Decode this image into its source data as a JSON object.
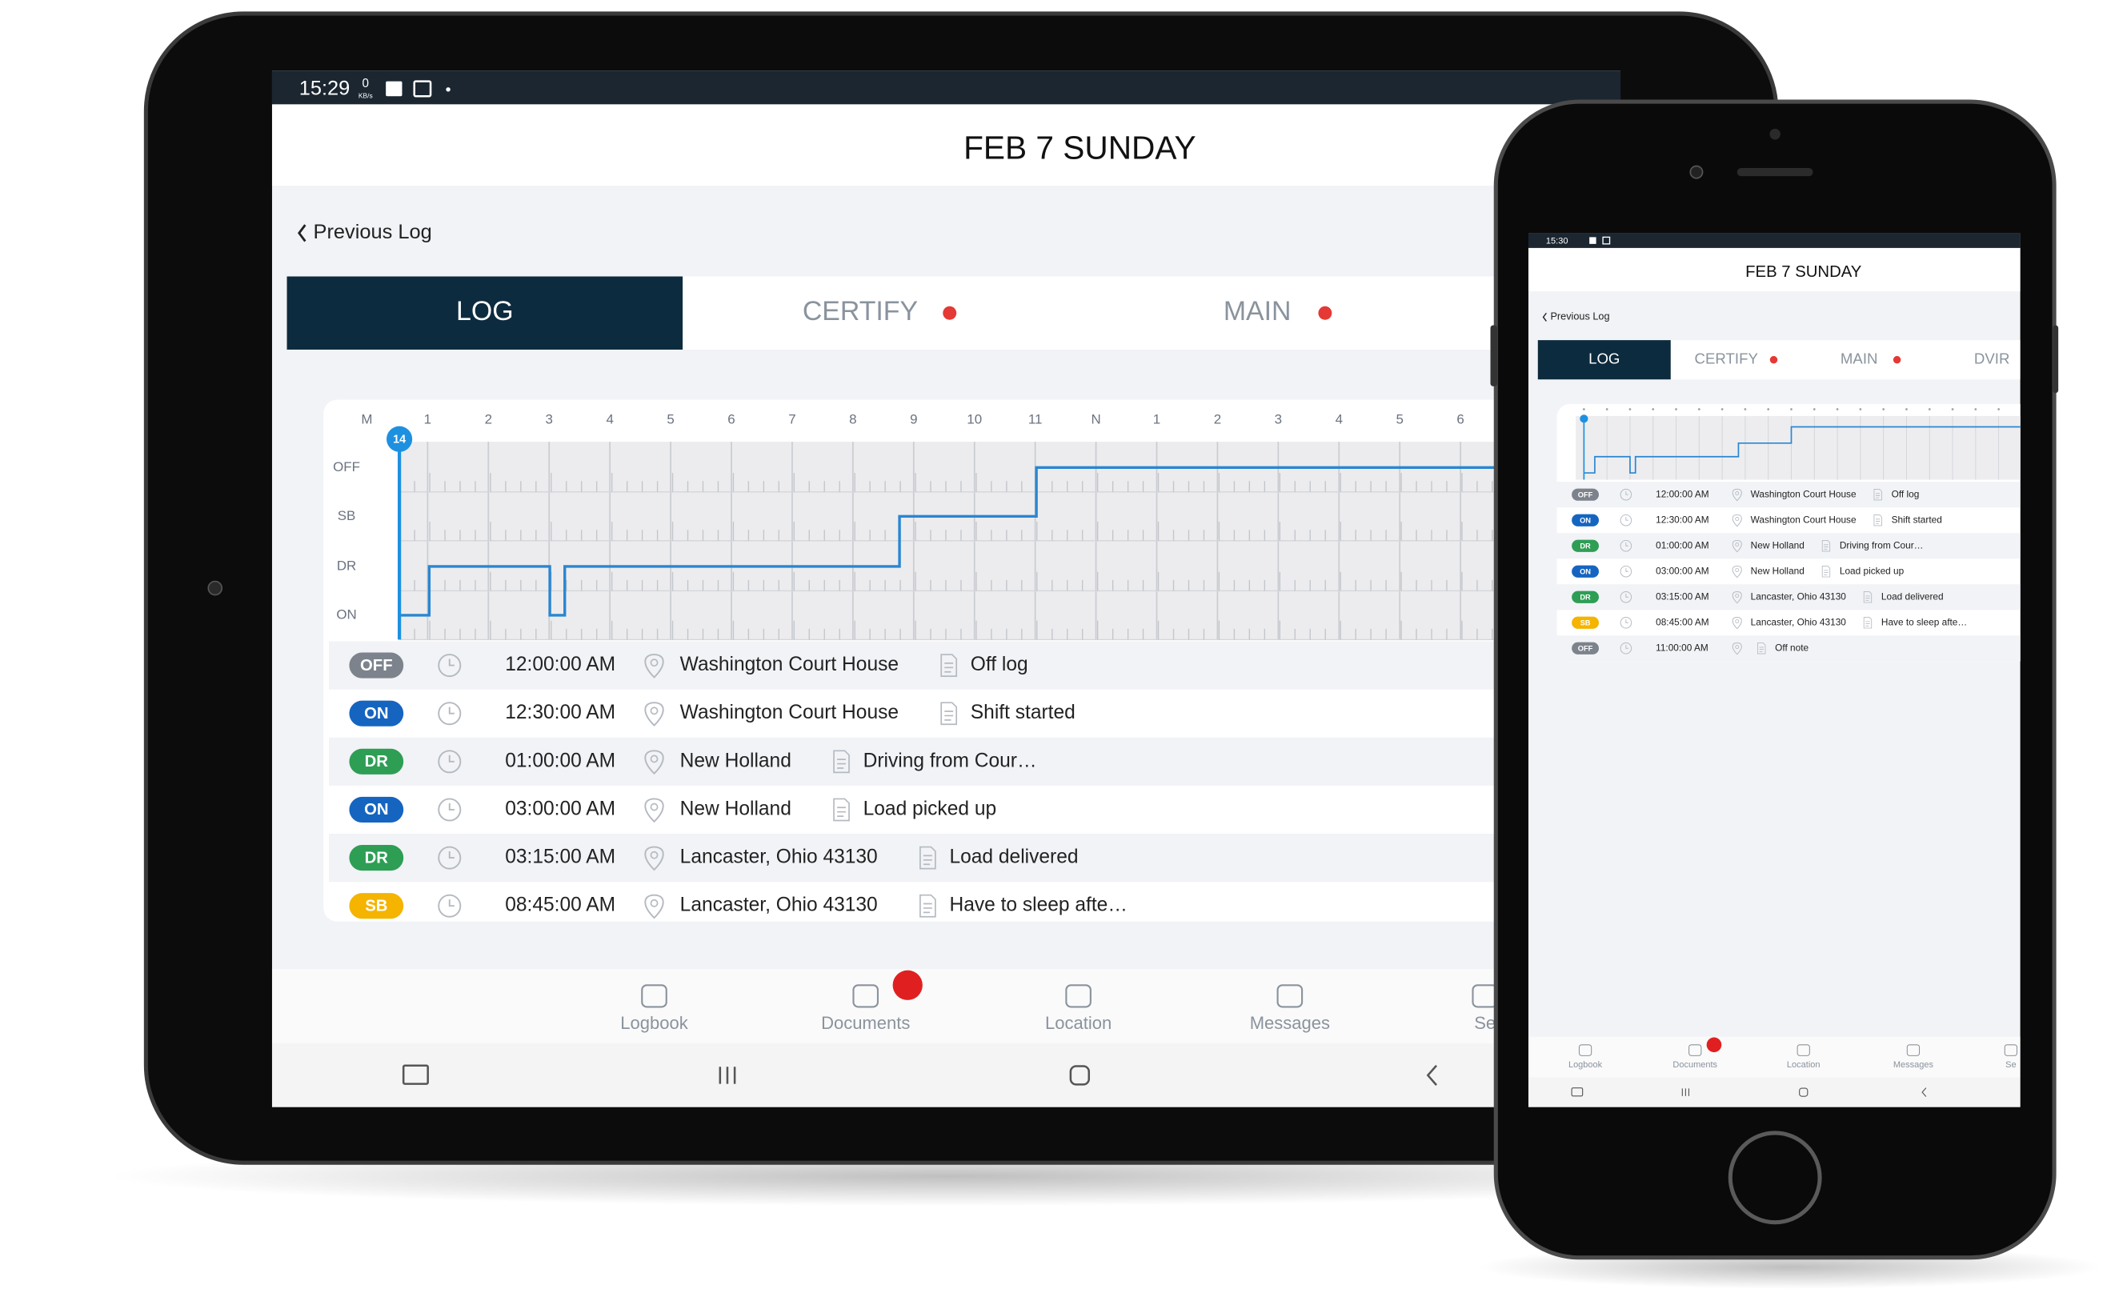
{
  "status_colors": {
    "OFF": "#7d838c",
    "ON": "#1565c0",
    "DR": "#2e9e55",
    "SB": "#f4b400"
  },
  "tablet": {
    "status_bar": {
      "time": "15:29",
      "speed": "0",
      "speed_unit": "KB/s"
    },
    "header": {
      "title": "FEB 7 SUNDAY"
    },
    "back_link": "Previous Log",
    "tabs": [
      "LOG",
      "CERTIFY",
      "MAIN"
    ],
    "graph": {
      "hours": [
        "M",
        "1",
        "2",
        "3",
        "4",
        "5",
        "6",
        "7",
        "8",
        "9",
        "10",
        "11",
        "N",
        "1",
        "2",
        "3",
        "4",
        "5",
        "6"
      ],
      "statuses": [
        "OFF",
        "SB",
        "DR",
        "ON"
      ],
      "marker": "14"
    },
    "events": [
      {
        "status": "OFF",
        "time": "12:00:00 AM",
        "location": "Washington Court House",
        "note": "Off log"
      },
      {
        "status": "ON",
        "time": "12:30:00 AM",
        "location": "Washington Court House",
        "note": "Shift started"
      },
      {
        "status": "DR",
        "time": "01:00:00 AM",
        "location": "New Holland",
        "note": "Driving from Cour…"
      },
      {
        "status": "ON",
        "time": "03:00:00 AM",
        "location": "New Holland",
        "note": "Load picked up"
      },
      {
        "status": "DR",
        "time": "03:15:00 AM",
        "location": "Lancaster, Ohio 43130",
        "note": "Load delivered"
      },
      {
        "status": "SB",
        "time": "08:45:00 AM",
        "location": "Lancaster, Ohio 43130",
        "note": "Have to sleep afte…"
      }
    ],
    "nav": [
      "Logbook",
      "Documents",
      "Location",
      "Messages",
      "Se"
    ]
  },
  "phone": {
    "status_bar": {
      "time": "15:30"
    },
    "header": {
      "title": "FEB 7 SUNDAY"
    },
    "back_link": "Previous Log",
    "tabs": [
      "LOG",
      "CERTIFY",
      "MAIN",
      "DVIR"
    ],
    "events": [
      {
        "status": "OFF",
        "time": "12:00:00 AM",
        "location": "Washington Court House",
        "note": "Off log"
      },
      {
        "status": "ON",
        "time": "12:30:00 AM",
        "location": "Washington Court House",
        "note": "Shift started"
      },
      {
        "status": "DR",
        "time": "01:00:00 AM",
        "location": "New Holland",
        "note": "Driving from Cour…"
      },
      {
        "status": "ON",
        "time": "03:00:00 AM",
        "location": "New Holland",
        "note": "Load picked up"
      },
      {
        "status": "DR",
        "time": "03:15:00 AM",
        "location": "Lancaster, Ohio 43130",
        "note": "Load delivered"
      },
      {
        "status": "SB",
        "time": "08:45:00 AM",
        "location": "Lancaster, Ohio 43130",
        "note": "Have to sleep afte…"
      },
      {
        "status": "OFF",
        "time": "11:00:00 AM",
        "note": "Off note"
      }
    ],
    "nav": [
      "Logbook",
      "Documents",
      "Location",
      "Messages",
      "Se"
    ]
  }
}
